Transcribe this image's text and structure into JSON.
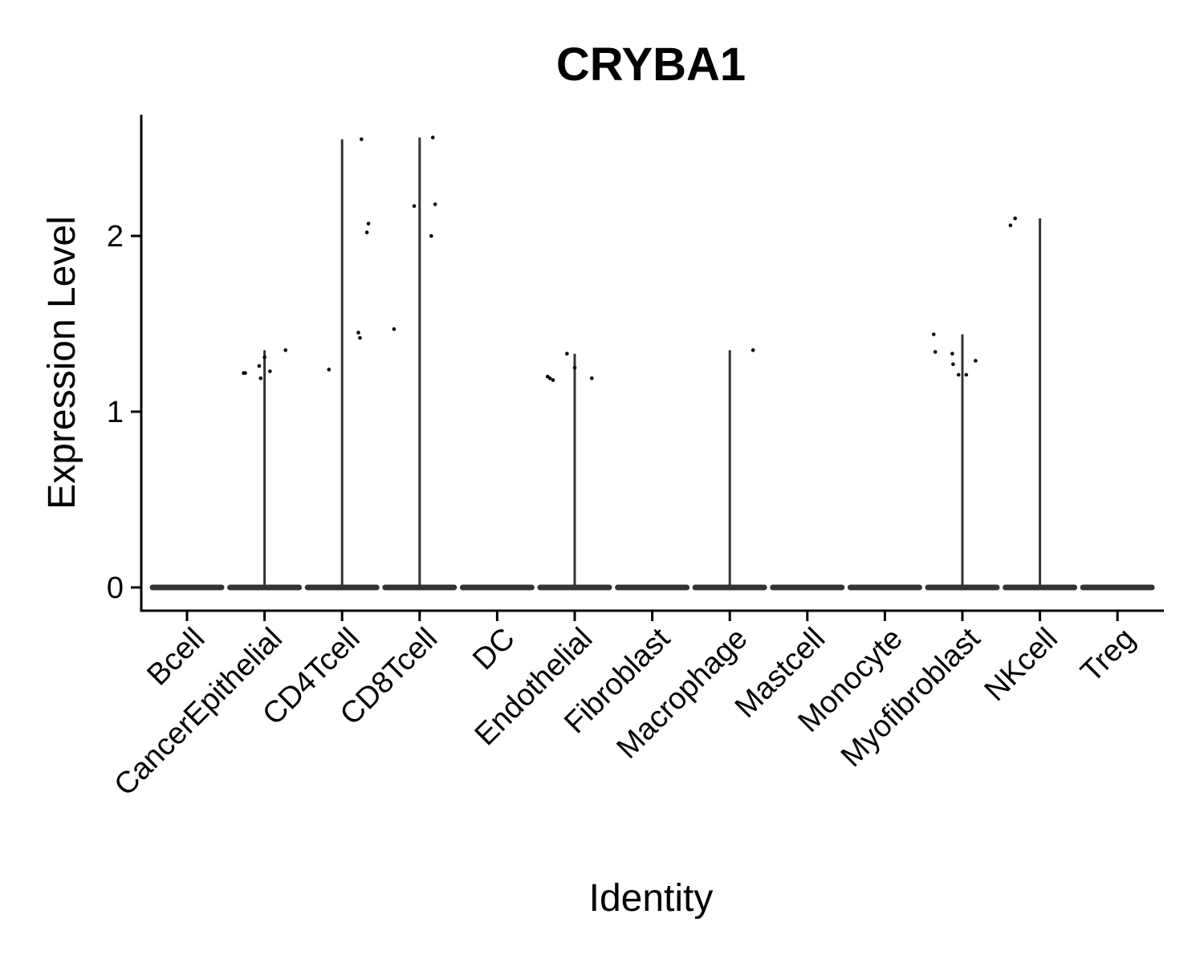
{
  "chart_data": {
    "type": "violin",
    "title": "CRYBA1",
    "xlabel": "Identity",
    "ylabel": "Expression Level",
    "ylim": [
      -0.13,
      2.7
    ],
    "yticks": [
      0,
      1,
      2
    ],
    "grid": false,
    "legend": "none",
    "colors": {
      "violin": "#333333",
      "points": "#000000",
      "axis": "#000000"
    },
    "categories": [
      "Bcell",
      "CancerEpithelial",
      "CD4Tcell",
      "CD8Tcell",
      "DC",
      "Endothelial",
      "Fibroblast",
      "Macrophage",
      "Mastcell",
      "Monocyte",
      "Myofibroblast",
      "NKcell",
      "Treg"
    ],
    "max_values": [
      0,
      1.35,
      2.55,
      2.56,
      0,
      1.33,
      0,
      1.35,
      0,
      0,
      1.44,
      2.1,
      0
    ],
    "points": [
      [],
      [
        [
          -0.27,
          1.22
        ],
        [
          -0.25,
          1.22
        ],
        [
          -0.07,
          1.26
        ],
        [
          -0.05,
          1.19
        ],
        [
          0.0,
          1.31
        ],
        [
          0.07,
          1.23
        ],
        [
          0.27,
          1.35
        ]
      ],
      [
        [
          -0.17,
          1.24
        ],
        [
          0.21,
          1.45
        ],
        [
          0.23,
          1.42
        ],
        [
          0.25,
          2.55
        ],
        [
          0.32,
          2.02
        ],
        [
          0.34,
          2.07
        ]
      ],
      [
        [
          -0.33,
          1.47
        ],
        [
          -0.07,
          2.17
        ],
        [
          0.15,
          2.0
        ],
        [
          0.17,
          2.56
        ],
        [
          0.2,
          2.18
        ]
      ],
      [],
      [
        [
          -0.35,
          1.2
        ],
        [
          -0.32,
          1.19
        ],
        [
          -0.28,
          1.18
        ],
        [
          -0.1,
          1.33
        ],
        [
          0.0,
          1.25
        ],
        [
          0.22,
          1.19
        ]
      ],
      [],
      [
        [
          0.3,
          1.35
        ]
      ],
      [],
      [],
      [
        [
          -0.37,
          1.44
        ],
        [
          -0.35,
          1.34
        ],
        [
          -0.13,
          1.33
        ],
        [
          -0.12,
          1.27
        ],
        [
          -0.05,
          1.21
        ],
        [
          0.05,
          1.21
        ],
        [
          0.17,
          1.29
        ]
      ],
      [
        [
          -0.38,
          2.06
        ],
        [
          -0.32,
          2.1
        ]
      ],
      []
    ]
  }
}
